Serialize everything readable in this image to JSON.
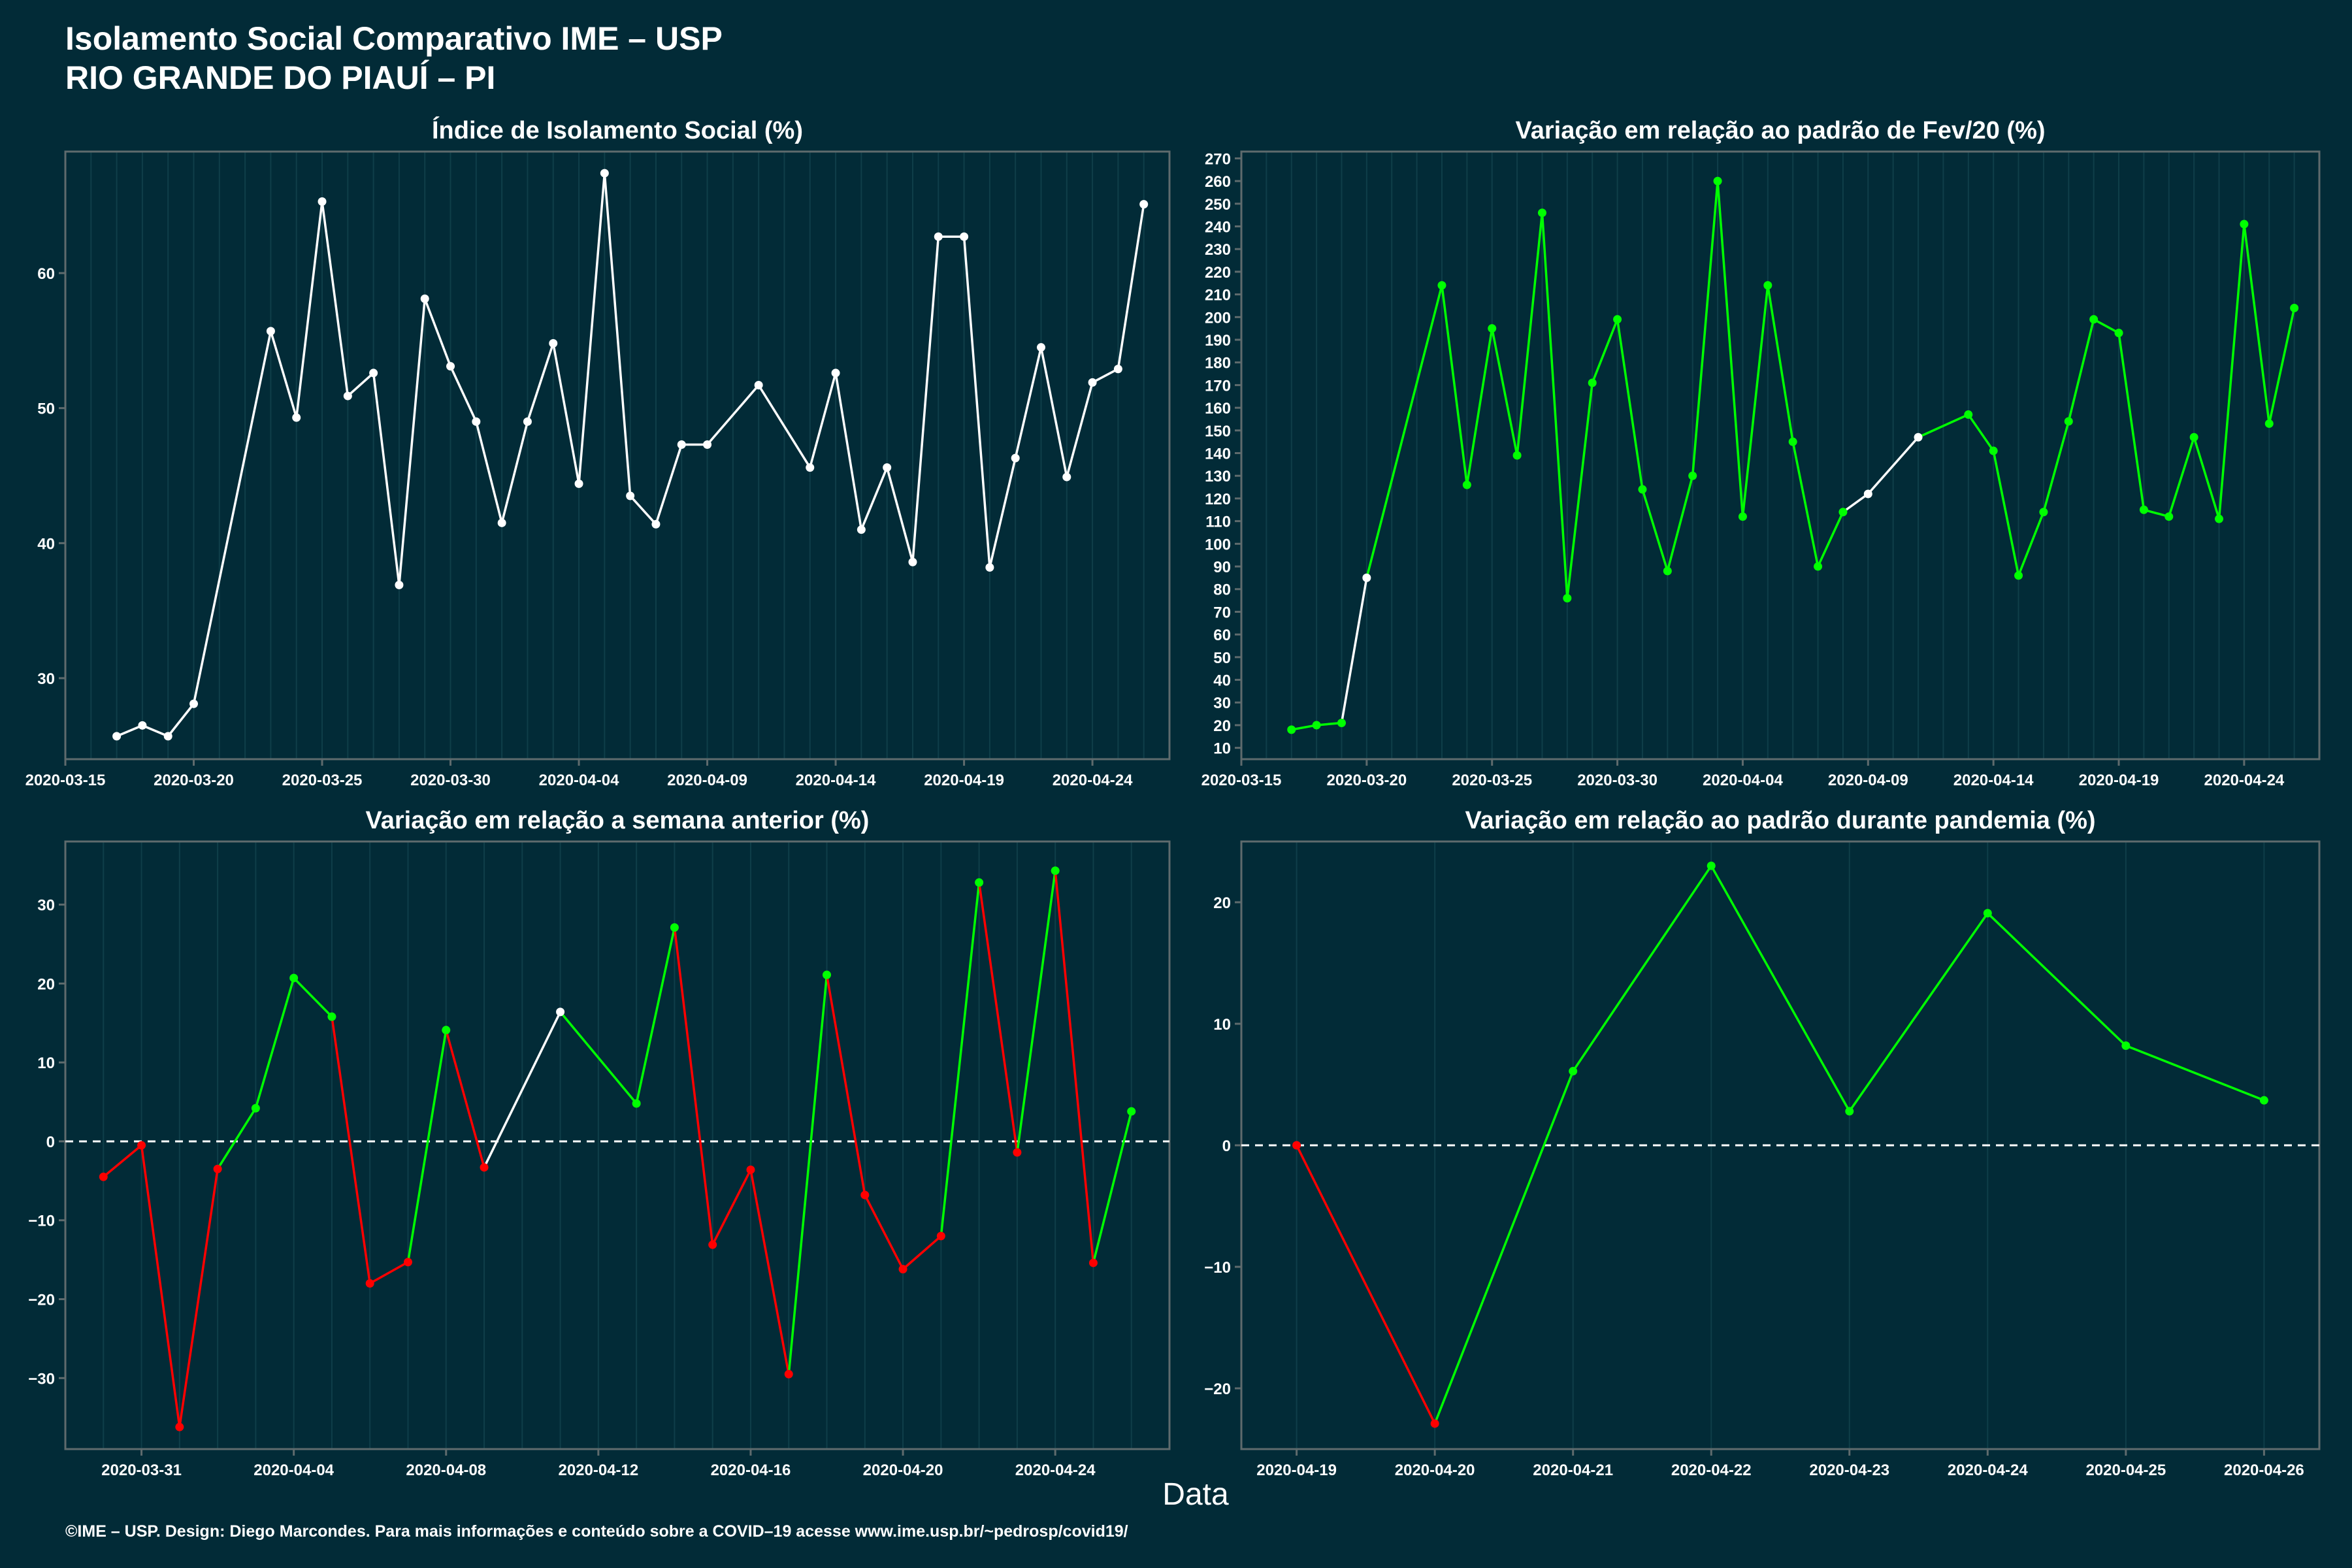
{
  "title_line1": "Isolamento Social Comparativo IME – USP",
  "title_line2": "RIO GRANDE DO PIAUÍ – PI",
  "xlabel": "Data",
  "footer": "©IME – USP. Design: Diego Marcondes. Para mais informações e conteúdo sobre a COVID–19 acesse www.ime.usp.br/~pedrosp/covid19/",
  "colors": {
    "background": "#022b37",
    "axis": "#5f6b6d",
    "text": "#ffffff",
    "white_line": "#ffffff",
    "positive": "#00ff00",
    "negative": "#ff0000",
    "grid": "#0f3e49"
  },
  "chart_data": [
    {
      "type": "line",
      "title": "Índice de Isolamento Social (%)",
      "x_type": "date",
      "xlim": [
        "2020-03-15",
        "2020-04-27"
      ],
      "xticks": [
        "2020-03-15",
        "2020-03-20",
        "2020-03-25",
        "2020-03-30",
        "2020-04-04",
        "2020-04-09",
        "2020-04-14",
        "2020-04-19",
        "2020-04-24"
      ],
      "ylim": [
        24,
        69
      ],
      "yticks": [
        30,
        40,
        50,
        60
      ],
      "grid": true,
      "points": [
        {
          "x": "2020-03-17",
          "y": 25.7,
          "c": "white"
        },
        {
          "x": "2020-03-18",
          "y": 26.5,
          "c": "white"
        },
        {
          "x": "2020-03-19",
          "y": 25.7,
          "c": "white"
        },
        {
          "x": "2020-03-20",
          "y": 28.1,
          "c": "white"
        },
        {
          "x": "2020-03-23",
          "y": 55.7,
          "c": "white"
        },
        {
          "x": "2020-03-24",
          "y": 49.3,
          "c": "white"
        },
        {
          "x": "2020-03-25",
          "y": 65.3,
          "c": "white"
        },
        {
          "x": "2020-03-26",
          "y": 50.9,
          "c": "white"
        },
        {
          "x": "2020-03-27",
          "y": 52.6,
          "c": "white"
        },
        {
          "x": "2020-03-28",
          "y": 36.9,
          "c": "white"
        },
        {
          "x": "2020-03-29",
          "y": 58.1,
          "c": "white"
        },
        {
          "x": "2020-03-30",
          "y": 53.1,
          "c": "white"
        },
        {
          "x": "2020-03-31",
          "y": 49.0,
          "c": "white"
        },
        {
          "x": "2020-04-01",
          "y": 41.5,
          "c": "white"
        },
        {
          "x": "2020-04-02",
          "y": 49.0,
          "c": "white"
        },
        {
          "x": "2020-04-03",
          "y": 54.8,
          "c": "white"
        },
        {
          "x": "2020-04-04",
          "y": 44.4,
          "c": "white"
        },
        {
          "x": "2020-04-05",
          "y": 67.4,
          "c": "white"
        },
        {
          "x": "2020-04-06",
          "y": 43.5,
          "c": "white"
        },
        {
          "x": "2020-04-07",
          "y": 41.4,
          "c": "white"
        },
        {
          "x": "2020-04-08",
          "y": 47.3,
          "c": "white"
        },
        {
          "x": "2020-04-09",
          "y": 47.3,
          "c": "white"
        },
        {
          "x": "2020-04-11",
          "y": 51.7,
          "c": "white"
        },
        {
          "x": "2020-04-13",
          "y": 45.6,
          "c": "white"
        },
        {
          "x": "2020-04-14",
          "y": 52.6,
          "c": "white"
        },
        {
          "x": "2020-04-15",
          "y": 41.0,
          "c": "white"
        },
        {
          "x": "2020-04-16",
          "y": 45.6,
          "c": "white"
        },
        {
          "x": "2020-04-17",
          "y": 38.6,
          "c": "white"
        },
        {
          "x": "2020-04-18",
          "y": 62.7,
          "c": "white"
        },
        {
          "x": "2020-04-19",
          "y": 62.7,
          "c": "white"
        },
        {
          "x": "2020-04-20",
          "y": 38.2,
          "c": "white"
        },
        {
          "x": "2020-04-21",
          "y": 46.3,
          "c": "white"
        },
        {
          "x": "2020-04-22",
          "y": 54.5,
          "c": "white"
        },
        {
          "x": "2020-04-23",
          "y": 44.9,
          "c": "white"
        },
        {
          "x": "2020-04-24",
          "y": 51.9,
          "c": "white"
        },
        {
          "x": "2020-04-25",
          "y": 52.9,
          "c": "white"
        },
        {
          "x": "2020-04-26",
          "y": 65.1,
          "c": "white"
        }
      ]
    },
    {
      "type": "line",
      "title": "Variação em relação ao padrão de Fev/20 (%)",
      "x_type": "date",
      "xlim": [
        "2020-03-15",
        "2020-04-27"
      ],
      "xticks": [
        "2020-03-15",
        "2020-03-20",
        "2020-03-25",
        "2020-03-30",
        "2020-04-04",
        "2020-04-09",
        "2020-04-14",
        "2020-04-19",
        "2020-04-24"
      ],
      "ylim": [
        5,
        273
      ],
      "yticks": [
        10,
        20,
        30,
        40,
        50,
        60,
        70,
        80,
        90,
        100,
        110,
        120,
        130,
        140,
        150,
        160,
        170,
        180,
        190,
        200,
        210,
        220,
        230,
        240,
        250,
        260,
        270
      ],
      "grid": true,
      "points": [
        {
          "x": "2020-03-17",
          "y": 18,
          "c": "green"
        },
        {
          "x": "2020-03-18",
          "y": 20,
          "c": "green"
        },
        {
          "x": "2020-03-19",
          "y": 21,
          "c": "green"
        },
        {
          "x": "2020-03-20",
          "y": 85,
          "c": "white"
        },
        {
          "x": "2020-03-23",
          "y": 214,
          "c": "green"
        },
        {
          "x": "2020-03-24",
          "y": 126,
          "c": "green"
        },
        {
          "x": "2020-03-25",
          "y": 195,
          "c": "green"
        },
        {
          "x": "2020-03-26",
          "y": 139,
          "c": "green"
        },
        {
          "x": "2020-03-27",
          "y": 246,
          "c": "green"
        },
        {
          "x": "2020-03-28",
          "y": 76,
          "c": "green"
        },
        {
          "x": "2020-03-29",
          "y": 171,
          "c": "green"
        },
        {
          "x": "2020-03-30",
          "y": 199,
          "c": "green"
        },
        {
          "x": "2020-03-31",
          "y": 124,
          "c": "green"
        },
        {
          "x": "2020-04-01",
          "y": 88,
          "c": "green"
        },
        {
          "x": "2020-04-02",
          "y": 130,
          "c": "green"
        },
        {
          "x": "2020-04-03",
          "y": 260,
          "c": "green"
        },
        {
          "x": "2020-04-04",
          "y": 112,
          "c": "green"
        },
        {
          "x": "2020-04-05",
          "y": 214,
          "c": "green"
        },
        {
          "x": "2020-04-06",
          "y": 145,
          "c": "green"
        },
        {
          "x": "2020-04-07",
          "y": 90,
          "c": "green"
        },
        {
          "x": "2020-04-08",
          "y": 114,
          "c": "green"
        },
        {
          "x": "2020-04-09",
          "y": 122,
          "c": "white"
        },
        {
          "x": "2020-04-11",
          "y": 147,
          "c": "white"
        },
        {
          "x": "2020-04-13",
          "y": 157,
          "c": "green"
        },
        {
          "x": "2020-04-14",
          "y": 141,
          "c": "green"
        },
        {
          "x": "2020-04-15",
          "y": 86,
          "c": "green"
        },
        {
          "x": "2020-04-16",
          "y": 114,
          "c": "green"
        },
        {
          "x": "2020-04-17",
          "y": 154,
          "c": "green"
        },
        {
          "x": "2020-04-18",
          "y": 199,
          "c": "green"
        },
        {
          "x": "2020-04-19",
          "y": 193,
          "c": "green"
        },
        {
          "x": "2020-04-20",
          "y": 115,
          "c": "green"
        },
        {
          "x": "2020-04-21",
          "y": 112,
          "c": "green"
        },
        {
          "x": "2020-04-22",
          "y": 147,
          "c": "green"
        },
        {
          "x": "2020-04-23",
          "y": 111,
          "c": "green"
        },
        {
          "x": "2020-04-24",
          "y": 241,
          "c": "green"
        },
        {
          "x": "2020-04-25",
          "y": 153,
          "c": "green"
        },
        {
          "x": "2020-04-26",
          "y": 204,
          "c": "green"
        }
      ]
    },
    {
      "type": "line",
      "title": "Variação em relação a semana anterior (%)",
      "x_type": "date",
      "xlim": [
        "2020-03-29",
        "2020-04-27"
      ],
      "xticks": [
        "2020-03-31",
        "2020-04-04",
        "2020-04-08",
        "2020-04-12",
        "2020-04-16",
        "2020-04-20",
        "2020-04-24"
      ],
      "ylim": [
        -39,
        38
      ],
      "yticks": [
        -30,
        -20,
        -10,
        0,
        10,
        20,
        30
      ],
      "zero_line": true,
      "grid": true,
      "points": [
        {
          "x": "2020-03-30",
          "y": -4.5,
          "c": "red"
        },
        {
          "x": "2020-03-31",
          "y": -0.5,
          "c": "red"
        },
        {
          "x": "2020-04-01",
          "y": -36.2,
          "c": "red"
        },
        {
          "x": "2020-04-02",
          "y": -3.5,
          "c": "red"
        },
        {
          "x": "2020-04-03",
          "y": 4.2,
          "c": "green"
        },
        {
          "x": "2020-04-04",
          "y": 20.7,
          "c": "green"
        },
        {
          "x": "2020-04-05",
          "y": 15.8,
          "c": "green"
        },
        {
          "x": "2020-04-06",
          "y": -18.0,
          "c": "red"
        },
        {
          "x": "2020-04-07",
          "y": -15.3,
          "c": "red"
        },
        {
          "x": "2020-04-08",
          "y": 14.1,
          "c": "green"
        },
        {
          "x": "2020-04-09",
          "y": -3.3,
          "c": "red"
        },
        {
          "x": "2020-04-11",
          "y": 16.4,
          "c": "white"
        },
        {
          "x": "2020-04-13",
          "y": 4.8,
          "c": "green"
        },
        {
          "x": "2020-04-14",
          "y": 27.1,
          "c": "green"
        },
        {
          "x": "2020-04-15",
          "y": -13.1,
          "c": "red"
        },
        {
          "x": "2020-04-16",
          "y": -3.6,
          "c": "red"
        },
        {
          "x": "2020-04-17",
          "y": -29.5,
          "c": "red"
        },
        {
          "x": "2020-04-18",
          "y": 21.1,
          "c": "green"
        },
        {
          "x": "2020-04-19",
          "y": -6.8,
          "c": "red"
        },
        {
          "x": "2020-04-20",
          "y": -16.2,
          "c": "red"
        },
        {
          "x": "2020-04-21",
          "y": -12.0,
          "c": "red"
        },
        {
          "x": "2020-04-22",
          "y": 32.8,
          "c": "green"
        },
        {
          "x": "2020-04-23",
          "y": -1.4,
          "c": "red"
        },
        {
          "x": "2020-04-24",
          "y": 34.3,
          "c": "green"
        },
        {
          "x": "2020-04-25",
          "y": -15.4,
          "c": "red"
        },
        {
          "x": "2020-04-26",
          "y": 3.8,
          "c": "green"
        }
      ]
    },
    {
      "type": "line",
      "title": "Variação em relação ao padrão durante pandemia (%)",
      "x_type": "date",
      "xlim": [
        "2020-04-18.6",
        "2020-04-26.4"
      ],
      "xticks": [
        "2020-04-19",
        "2020-04-20",
        "2020-04-21",
        "2020-04-22",
        "2020-04-23",
        "2020-04-24",
        "2020-04-25",
        "2020-04-26"
      ],
      "ylim": [
        -25,
        25
      ],
      "yticks": [
        -20,
        -10,
        0,
        10,
        20
      ],
      "zero_line": true,
      "grid": true,
      "points": [
        {
          "x": "2020-04-19",
          "y": 0.0,
          "c": "red"
        },
        {
          "x": "2020-04-20",
          "y": -22.9,
          "c": "red"
        },
        {
          "x": "2020-04-21",
          "y": 6.1,
          "c": "green"
        },
        {
          "x": "2020-04-22",
          "y": 23.0,
          "c": "green"
        },
        {
          "x": "2020-04-23",
          "y": 2.8,
          "c": "green"
        },
        {
          "x": "2020-04-24",
          "y": 19.1,
          "c": "green"
        },
        {
          "x": "2020-04-25",
          "y": 8.2,
          "c": "green"
        },
        {
          "x": "2020-04-26",
          "y": 3.7,
          "c": "green"
        }
      ]
    }
  ]
}
